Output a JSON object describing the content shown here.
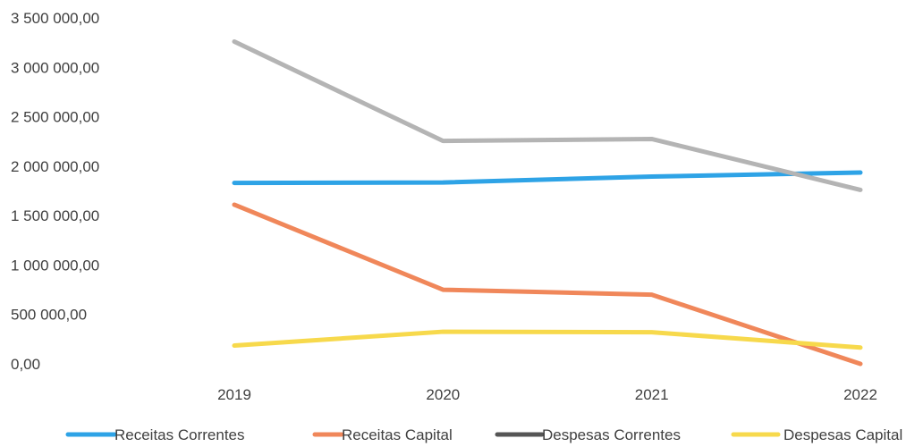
{
  "chart_data": {
    "type": "line",
    "x": [
      "2019",
      "2020",
      "2021",
      "2022"
    ],
    "ylim": [
      0,
      3500000
    ],
    "ytick_values": [
      0,
      500000,
      1000000,
      1500000,
      2000000,
      2500000,
      3000000,
      3500000
    ],
    "ytick_labels": [
      "0,00",
      "500 000,00",
      "1 000 000,00",
      "1 500 000,00",
      "2 000 000,00",
      "2 500 000,00",
      "3 000 000,00",
      "3 500 000,00"
    ],
    "grid": false,
    "legend_position": "bottom",
    "series": [
      {
        "name": "Receitas Correntes",
        "color": "#2ea3e6",
        "values": [
          1830000,
          1835000,
          1895000,
          1935000
        ]
      },
      {
        "name": "Receitas Capital",
        "color": "#f0875a",
        "values": [
          1610000,
          750000,
          700000,
          0
        ]
      },
      {
        "name": "Despesas Correntes",
        "color": "#b4b4b4",
        "values": [
          3260000,
          2255000,
          2275000,
          1760000
        ]
      },
      {
        "name": "Despesas Capital",
        "color": "#f7d94c",
        "values": [
          185000,
          325000,
          320000,
          165000
        ]
      }
    ]
  }
}
